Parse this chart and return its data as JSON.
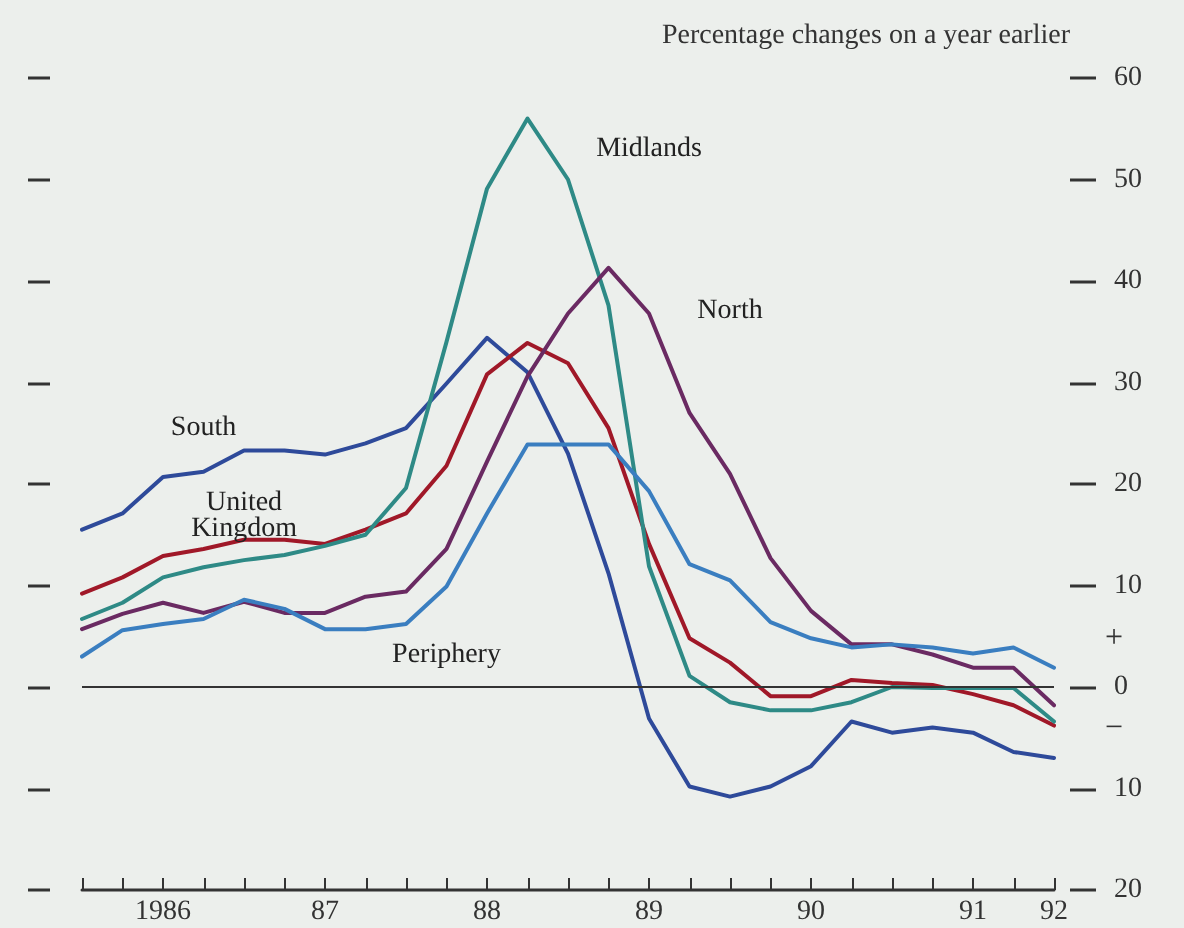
{
  "chart_data": {
    "type": "line",
    "ylabel": "Percentage changes on a year earlier",
    "categories": [
      null,
      null,
      "1986",
      null,
      null,
      null,
      "87",
      null,
      null,
      null,
      "88",
      null,
      null,
      null,
      "89",
      null,
      null,
      null,
      "90",
      null,
      null,
      null,
      "91",
      null,
      "92"
    ],
    "series": [
      {
        "name": "South",
        "color": "#2e4a9a",
        "values": [
          15.5,
          17.1,
          20.7,
          21.2,
          23.3,
          23.3,
          22.9,
          24.0,
          25.5,
          29.9,
          34.4,
          31.0,
          23.0,
          11.2,
          -3.1,
          -9.8,
          -10.8,
          -9.8,
          -7.8,
          -3.4,
          -4.5,
          -4.0,
          -4.5,
          -6.4,
          -7.0
        ]
      },
      {
        "name": "United Kingdom",
        "color": "#a01828",
        "values": [
          9.2,
          10.8,
          12.9,
          13.6,
          14.5,
          14.5,
          14.1,
          15.5,
          17.1,
          21.8,
          30.8,
          33.9,
          31.9,
          25.5,
          14.1,
          4.8,
          2.4,
          -0.9,
          -0.9,
          0.7,
          0.4,
          0.2,
          -0.7,
          -1.8,
          -3.8
        ]
      },
      {
        "name": "Midlands",
        "color": "#2e8a86",
        "values": [
          6.7,
          8.3,
          10.8,
          11.8,
          12.5,
          13.0,
          13.9,
          15.0,
          19.6,
          34.0,
          49.1,
          56.0,
          50.0,
          37.6,
          11.9,
          1.1,
          -1.5,
          -2.3,
          -2.3,
          -1.5,
          0.0,
          -0.1,
          -0.1,
          -0.1,
          -3.4
        ]
      },
      {
        "name": "North",
        "color": "#6a2a62",
        "values": [
          5.7,
          7.2,
          8.3,
          7.3,
          8.4,
          7.3,
          7.3,
          8.9,
          9.4,
          13.6,
          22.2,
          30.6,
          36.8,
          41.3,
          36.8,
          27.0,
          21.0,
          12.7,
          7.5,
          4.2,
          4.2,
          3.2,
          1.9,
          1.9,
          -1.8
        ]
      },
      {
        "name": "Periphery",
        "color": "#3a7ec0",
        "values": [
          3.0,
          5.6,
          6.2,
          6.7,
          8.6,
          7.7,
          5.7,
          5.7,
          6.2,
          9.9,
          17.1,
          23.9,
          23.9,
          23.9,
          19.3,
          12.1,
          10.5,
          6.4,
          4.8,
          3.9,
          4.2,
          3.9,
          3.3,
          3.9,
          1.9
        ]
      }
    ],
    "ylim": [
      -20,
      60
    ],
    "yticks": [
      {
        "value": -20,
        "label": "20"
      },
      {
        "value": -10,
        "label": "10"
      },
      0,
      10,
      20,
      30,
      40,
      50,
      60
    ],
    "ref_lines": [
      {
        "axis": "y",
        "value": 0,
        "color": "#333333"
      }
    ],
    "annotations": [
      "+",
      "−"
    ],
    "grid": false,
    "legend": false,
    "marker": "none",
    "line_style": "solid"
  }
}
